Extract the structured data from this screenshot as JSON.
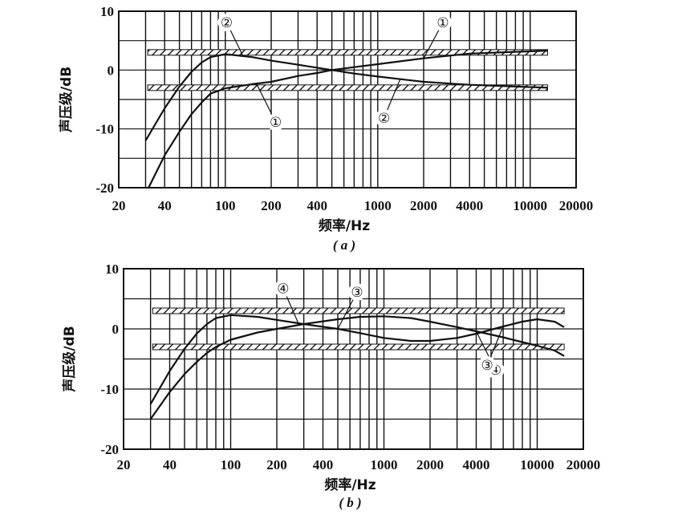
{
  "chart_data": [
    {
      "type": "line",
      "caption": "( a )",
      "title": "",
      "xlabel": "频率/Hz",
      "ylabel": "声压级/dB",
      "x_scale": "log",
      "xlim": [
        20,
        20000
      ],
      "ylim": [
        -20,
        10
      ],
      "x_ticks": [
        20,
        40,
        100,
        200,
        400,
        1000,
        2000,
        4000,
        10000,
        20000
      ],
      "x_tick_labels": [
        "20",
        "40",
        "100",
        "200",
        "400",
        "1000",
        "2000",
        "4000",
        "10000",
        "20000"
      ],
      "y_ticks": [
        10,
        0,
        -10,
        -20
      ],
      "y_tick_labels": [
        "10",
        "0",
        "-10",
        "-20"
      ],
      "grid": true,
      "tolerance_band": {
        "upper": 3,
        "lower": -3,
        "x_range": [
          31,
          13000
        ],
        "style": "hatched"
      },
      "series": [
        {
          "name": "①",
          "x": [
            30,
            40,
            50,
            60,
            70,
            80,
            100,
            150,
            200,
            300,
            400,
            500,
            700,
            1000,
            2000,
            4000,
            8000,
            13000
          ],
          "y": [
            -21,
            -14.5,
            -10.5,
            -7.5,
            -5.5,
            -4,
            -3.1,
            -2.4,
            -2,
            -1,
            -0.5,
            0,
            0.5,
            1,
            2,
            2.8,
            3.1,
            3.3
          ]
        },
        {
          "name": "②",
          "x": [
            30,
            40,
            50,
            60,
            70,
            80,
            100,
            150,
            200,
            300,
            400,
            500,
            700,
            1000,
            2000,
            4000,
            8000,
            13000
          ],
          "y": [
            -12,
            -6.5,
            -2.8,
            -0.3,
            1.3,
            2.2,
            2.7,
            2.2,
            1.6,
            0.9,
            0.4,
            0,
            -0.6,
            -1.1,
            -2,
            -2.5,
            -2.8,
            -3
          ]
        }
      ],
      "callouts": [
        {
          "label": "①",
          "series": "①",
          "x": 2000,
          "y": 2
        },
        {
          "label": "②",
          "series": "②",
          "x": 130,
          "y": 2.5
        },
        {
          "label": "①",
          "series": "①",
          "x": 160,
          "y": -2.3
        },
        {
          "label": "②",
          "series": "②",
          "x": 1400,
          "y": -1.6
        }
      ]
    },
    {
      "type": "line",
      "caption": "( b )",
      "title": "",
      "xlabel": "频率/Hz",
      "ylabel": "声压级/dB",
      "x_scale": "log",
      "xlim": [
        20,
        20000
      ],
      "ylim": [
        -20,
        10
      ],
      "x_ticks": [
        20,
        40,
        100,
        200,
        400,
        1000,
        2000,
        4000,
        10000,
        20000
      ],
      "x_tick_labels": [
        "20",
        "40",
        "100",
        "200",
        "400",
        "1000",
        "2000",
        "4000",
        "10000",
        "20000"
      ],
      "y_ticks": [
        10,
        0,
        -10,
        -20
      ],
      "y_tick_labels": [
        "10",
        "0",
        "-10",
        "-20"
      ],
      "grid": true,
      "tolerance_band": {
        "upper": 3,
        "lower": -3,
        "x_range": [
          31,
          15000
        ],
        "style": "hatched"
      },
      "series": [
        {
          "name": "③",
          "x": [
            30,
            40,
            50,
            60,
            70,
            80,
            100,
            150,
            200,
            300,
            500,
            700,
            1000,
            1500,
            2000,
            3000,
            4000,
            6000,
            8000,
            10000,
            13000,
            15000
          ],
          "y": [
            -12.5,
            -7,
            -3.3,
            -0.8,
            0.8,
            1.8,
            2.3,
            2,
            1.5,
            0.8,
            0,
            -0.7,
            -1.5,
            -2,
            -2,
            -1.5,
            -0.8,
            0.4,
            1.2,
            1.6,
            1.2,
            0.3
          ]
        },
        {
          "name": "④",
          "x": [
            30,
            40,
            50,
            60,
            70,
            80,
            100,
            150,
            200,
            300,
            500,
            700,
            1000,
            1500,
            2000,
            3000,
            4000,
            6000,
            8000,
            10000,
            13000,
            15000
          ],
          "y": [
            -15,
            -10.5,
            -7.5,
            -5.5,
            -4,
            -3,
            -1.8,
            -0.6,
            0,
            0.8,
            1.6,
            2,
            2.1,
            1.8,
            1.2,
            0.3,
            -0.4,
            -1.4,
            -2.2,
            -2.8,
            -3.6,
            -4.5
          ]
        }
      ],
      "callouts": [
        {
          "label": "③",
          "series": "③",
          "x": 500,
          "y": 0
        },
        {
          "label": "④",
          "series": "④",
          "x": 280,
          "y": 0.6
        },
        {
          "label": "④",
          "series": "④",
          "x": 4000,
          "y": -0.4
        },
        {
          "label": "③",
          "series": "③",
          "x": 6000,
          "y": 0.4
        }
      ]
    }
  ]
}
